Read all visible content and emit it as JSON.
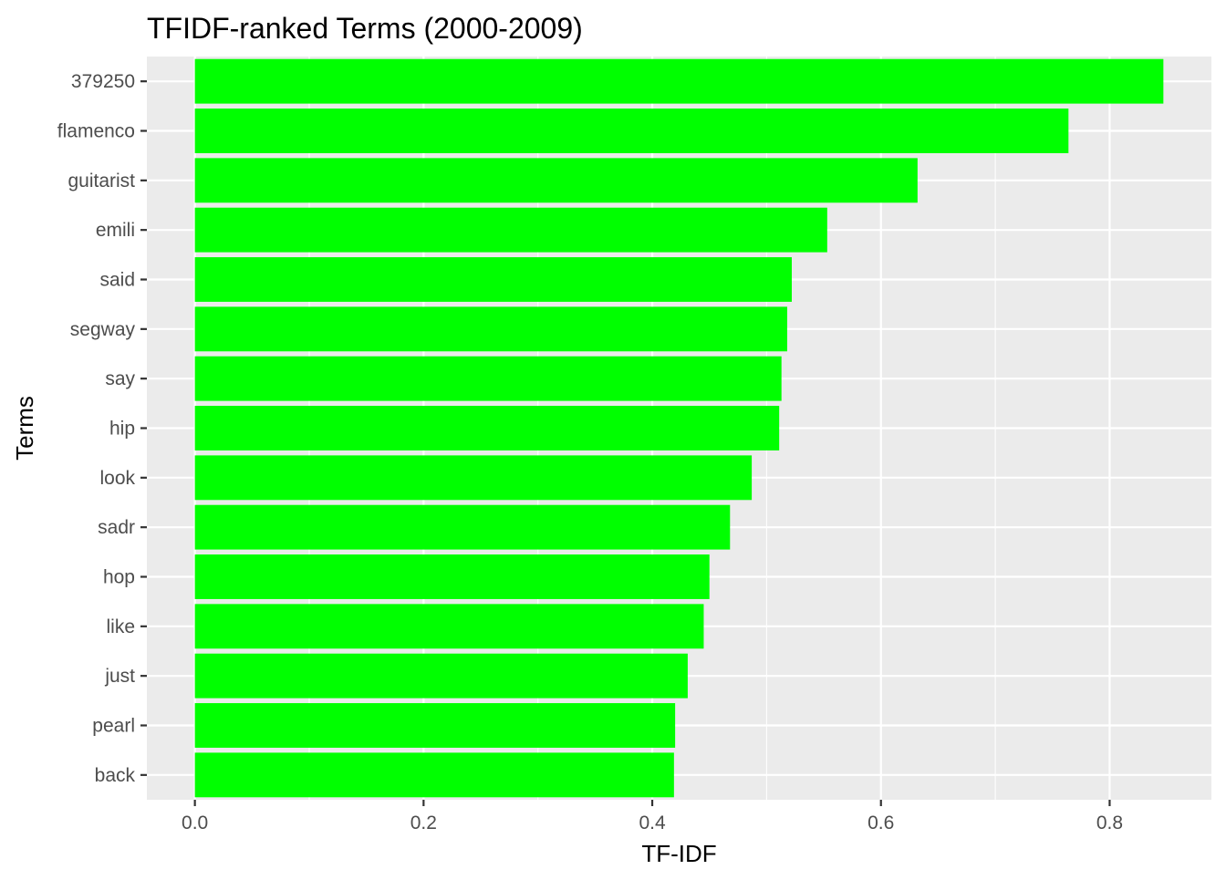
{
  "chart_data": {
    "type": "bar",
    "orientation": "horizontal",
    "title": "TFIDF-ranked Terms (2000-2009)",
    "xlabel": "TF-IDF",
    "ylabel": "Terms",
    "categories": [
      "379250",
      "flamenco",
      "guitarist",
      "emili",
      "said",
      "segway",
      "say",
      "hip",
      "look",
      "sadr",
      "hop",
      "like",
      "just",
      "pearl",
      "back"
    ],
    "values": [
      0.847,
      0.764,
      0.632,
      0.553,
      0.522,
      0.518,
      0.513,
      0.511,
      0.487,
      0.468,
      0.45,
      0.445,
      0.431,
      0.42,
      0.419
    ],
    "xlim": [
      -0.042,
      0.889
    ],
    "xticks": [
      0.0,
      0.2,
      0.4,
      0.6,
      0.8
    ],
    "xtick_labels": [
      "0.0",
      "0.2",
      "0.4",
      "0.6",
      "0.8"
    ],
    "grid": true,
    "bar_color": "#00FF00",
    "panel_color": "#EBEBEB",
    "grid_color": "#FFFFFF",
    "legend": "none"
  }
}
